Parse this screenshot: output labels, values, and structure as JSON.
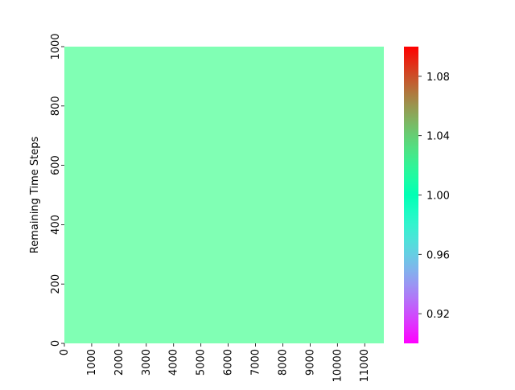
{
  "chart_data": {
    "type": "heatmap",
    "title": "",
    "xlabel": "",
    "ylabel": "Remaining Time Steps",
    "x_range": [
      0,
      11700
    ],
    "y_range": [
      0,
      1000
    ],
    "x_ticks": [
      0,
      1000,
      2000,
      3000,
      4000,
      5000,
      6000,
      7000,
      8000,
      9000,
      10000,
      11000
    ],
    "x_tick_labels": [
      "0",
      "1000",
      "2000",
      "3000",
      "4000",
      "5000",
      "6000",
      "7000",
      "8000",
      "9000",
      "10000",
      "11000"
    ],
    "y_ticks": [
      0,
      200,
      400,
      600,
      800,
      1000
    ],
    "y_tick_labels": [
      "0",
      "200",
      "400",
      "600",
      "800",
      "1000"
    ],
    "cell_value": 1.0,
    "cell_color": "#80ffb4",
    "colorbar": {
      "colormap": "rainbow",
      "range": [
        0.9,
        1.1
      ],
      "ticks": [
        0.92,
        0.96,
        1.0,
        1.04,
        1.08
      ],
      "tick_labels": [
        "0.92",
        "0.96",
        "1.00",
        "1.04",
        "1.08"
      ],
      "colors": {
        "low": "#8000ff",
        "mid": "#80ffb4",
        "high": "#ff0000"
      }
    },
    "grid": false,
    "legend": "none"
  }
}
